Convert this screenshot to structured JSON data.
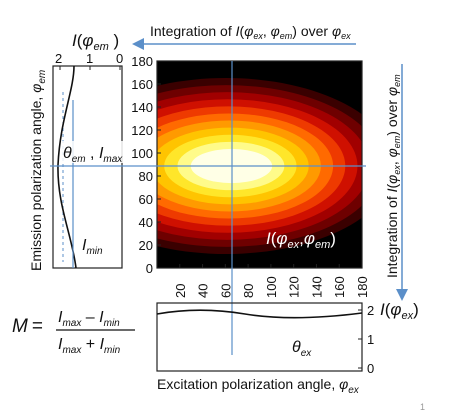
{
  "top_arrow_label": {
    "a": "Integration of ",
    "I": "I",
    "paren": "(",
    "phi_ex": "φ",
    "sub_ex": "ex",
    ", ": ", ",
    "phi_em": "φ",
    "sub_em": "em",
    ") over ": ") over ",
    "phi": "φ",
    "sub": "ex"
  },
  "left_panel": {
    "title_I": "I",
    "title_open": "(",
    "title_phi": "φ",
    "title_sub": "em",
    "title_close": " )",
    "ticks": [
      "2",
      "1",
      "0"
    ],
    "ylabel": "Emission polarization angle, ",
    "ylabel_phi": "φ",
    "ylabel_sub": "em",
    "theta_em": "θ",
    "theta_sub": "em",
    " , ": " , ",
    "Imax_I": "I",
    "Imax_sub": "max",
    "Imin_I": "I",
    "Imin_sub": "min"
  },
  "heatmap": {
    "y_ticks": [
      "180",
      "160",
      "140",
      "120",
      "100",
      "80",
      "60",
      "40",
      "20",
      "0"
    ],
    "x_ticks": [
      "20",
      "40",
      "60",
      "80",
      "100",
      "120",
      "140",
      "160",
      "180"
    ],
    "label_I": "I",
    "label_open": "(",
    "label_phi1": "φ",
    "label_sub1": "ex",
    ",": ",",
    "label_phi2": "φ",
    "label_sub2": "em",
    "label_close": ")",
    "colors": [
      "#000000",
      "#3a0000",
      "#6e0000",
      "#a10000",
      "#cf1000",
      "#ee3a00",
      "#ff6a00",
      "#ff9a00",
      "#ffc400",
      "#ffe62a",
      "#fffb8a",
      "#ffffe6"
    ]
  },
  "right_arrow_label": {
    "a": "Integration of ",
    "I": "I",
    "open": "(",
    "phi1": "φ",
    "sub1": "ex",
    ", ": ", ",
    "phi2": "φ",
    "sub2": "em",
    "close": ") over ",
    "phi": "φ",
    "sub": "em"
  },
  "bottom_panel": {
    "ticks": [
      "2",
      "1",
      "0"
    ],
    "title_I": "I",
    "title_open": "(",
    "title_phi": "φ",
    "title_sub": "ex",
    "title_close": ")",
    "theta": "θ",
    "theta_sub": "ex",
    "xlabel": "Excitation polarization angle, ",
    "xlabel_phi": "φ",
    "xlabel_sub": "ex"
  },
  "formula": {
    "M": "M",
    "eq": "=",
    "num_I1": "I",
    "num_s1": "max",
    "num_minus": " – ",
    "num_I2": "I",
    "num_s2": "min",
    "den_I1": "I",
    "den_s1": "max",
    "den_plus": " + ",
    "den_I2": "I",
    "den_s2": "min"
  },
  "page_number": "1"
}
